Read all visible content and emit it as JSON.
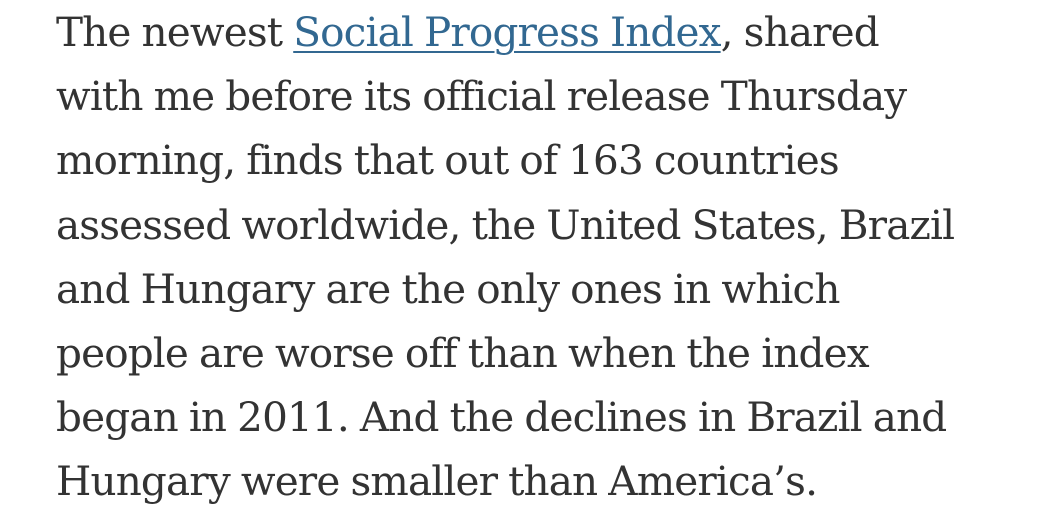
{
  "paragraph": {
    "intro": "The newest ",
    "link_text": "Social Progress Index",
    "after_link": ", shared",
    "lines": [
      "with me before its official release Thursday",
      "morning, finds that out of 163 countries",
      "assessed worldwide, the United States, Brazil",
      "and Hungary are the only ones in which",
      "people are worse off than when the index",
      "began in 2011. And the declines in Brazil and",
      "Hungary were smaller than America’s."
    ]
  },
  "colors": {
    "text": "#333333",
    "link": "#326891",
    "background": "#ffffff"
  }
}
